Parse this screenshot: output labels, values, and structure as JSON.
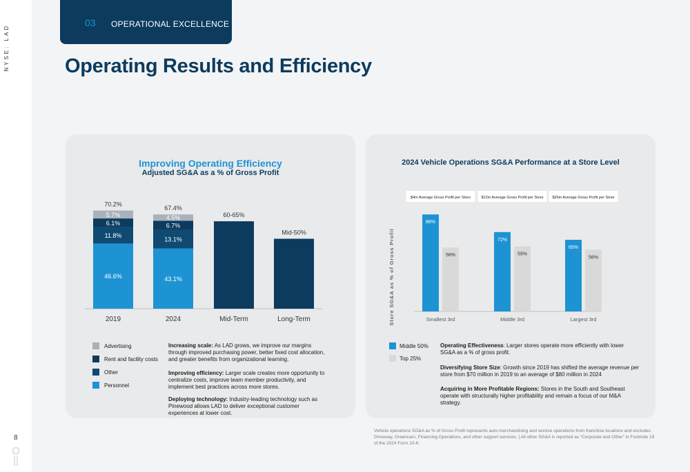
{
  "sidebar": {
    "ticker": "NYSE: LAD",
    "page_number": "8"
  },
  "header": {
    "section_number": "03",
    "section_label": "OPERATIONAL EXCELLENCE"
  },
  "page_title": "Operating Results and Efficiency",
  "left_panel": {
    "title": "Improving Operating Efficiency",
    "subtitle": "Adjusted SG&A as a % of Gross Profit",
    "legend": [
      {
        "label": "Advertising",
        "color": "#a9b2ba"
      },
      {
        "label": "Rent and facility costs",
        "color": "#0c3b5e"
      },
      {
        "label": "Other",
        "color": "#0f4a72"
      },
      {
        "label": "Personnel",
        "color": "#1e93d3"
      }
    ],
    "paragraphs": [
      {
        "lead": "Increasing scale:",
        "text": " As LAD grows, we improve our margins through improved purchasing power, better fixed cost allocation, and greater benefits from organizational learning."
      },
      {
        "lead": "Improving efficiency:",
        "text": " Larger scale creates more opportunity to centralize costs, improve team member productivity, and implement best practices across more stores."
      },
      {
        "lead": "Deploying technology:",
        "text": " Industry-leading technology such as Pinewood allows LAD to deliver exceptional customer experiences at lower cost."
      }
    ]
  },
  "right_panel": {
    "title": "2024 Vehicle Operations SG&A Performance at a Store Level",
    "legend": [
      {
        "label": "Middle 50%",
        "color": "#1e93d3"
      },
      {
        "label": "Top 25%",
        "color": "#d9d9d9"
      }
    ],
    "paragraphs": [
      {
        "lead": "Operating Effectiveness",
        "text": ": Larger stores operate more efficiently with lower SG&A as a % of gross profit."
      },
      {
        "lead": "Diversifying Store Size",
        "text": ": Growth since 2019 has shifted the average revenue per store from $70 million in 2019 to an average of $80 million in 2024"
      },
      {
        "lead": "Acquiring in More Profitable Regions:",
        "text": " Stores in the South and Southeast operate with structurally higher profitability and remain a focus of our M&A strategy."
      }
    ]
  },
  "footnote": "Vehicle operations SG&A as % of Gross Profit represents auto merchandising and service operations from franchise locations and excludes Driveway, Greencars, Financing Operations, and other support services. | All other SG&A is reported as “Corporate and Other” in Footnote 19 of the 2024 Form 10-K.",
  "chart_data": [
    {
      "type": "bar",
      "stacked": true,
      "title": "Improving Operating Efficiency",
      "subtitle": "Adjusted SG&A as a % of Gross Profit",
      "categories": [
        "2019",
        "2024",
        "Mid-Term",
        "Long-Term"
      ],
      "series": [
        {
          "name": "Personnel",
          "color": "#1e93d3",
          "values": [
            46.6,
            43.1,
            null,
            null
          ],
          "labels": [
            "46.6%",
            "43.1%",
            "",
            ""
          ]
        },
        {
          "name": "Other",
          "color": "#0f4a72",
          "values": [
            11.8,
            13.1,
            null,
            null
          ],
          "labels": [
            "11.8%",
            "13.1%",
            "",
            ""
          ]
        },
        {
          "name": "Rent and facility costs",
          "color": "#0c3b5e",
          "values": [
            6.1,
            6.7,
            null,
            null
          ],
          "labels": [
            "6.1%",
            "6.7%",
            "",
            ""
          ]
        },
        {
          "name": "Advertising",
          "color": "#a9b2ba",
          "values": [
            5.7,
            4.5,
            null,
            null
          ],
          "labels": [
            "5.7%",
            "4.5%",
            "",
            ""
          ]
        }
      ],
      "targets": [
        {
          "category": "Mid-Term",
          "value": 62.5
        },
        {
          "category": "Long-Term",
          "value": 50
        }
      ],
      "totals": [
        "70.2%",
        "67.4%",
        "60-65%",
        "Mid-50%"
      ],
      "ylim": [
        0,
        80
      ],
      "xlabel": "",
      "ylabel": ""
    },
    {
      "type": "bar",
      "title": "2024 Vehicle Operations SG&A Performance at a Store Level",
      "categories": [
        "Smallest 3rd",
        "Middle 3rd",
        "Largest 3rd"
      ],
      "category_notes": [
        "$4m Average Gross Profit per Store",
        "$12m Average Gross Profit per Store",
        "$26m Average Gross Profit per Store"
      ],
      "series": [
        {
          "name": "Middle 50%",
          "color": "#1e93d3",
          "values": [
            88,
            72,
            65
          ]
        },
        {
          "name": "Top 25%",
          "color": "#d9d9d9",
          "values": [
            58,
            59,
            56
          ]
        }
      ],
      "ylabel": "Store SG&A as % of Gross Profit",
      "xlabel": "",
      "ylim": [
        0,
        100
      ]
    }
  ]
}
